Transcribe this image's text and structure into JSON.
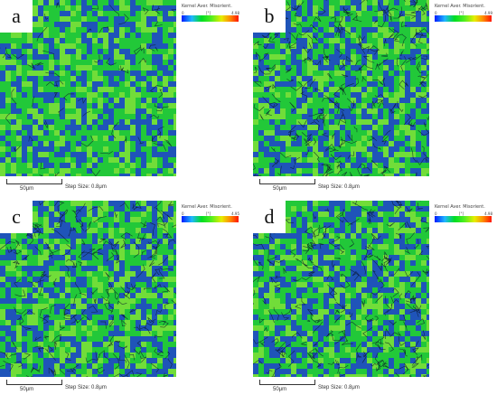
{
  "panels": [
    {
      "label": "a",
      "legend_title": "Kernel Aver. Misorient.",
      "legend_min": "0",
      "legend_unit": "[°]",
      "legend_max": "4.98",
      "scale_label": "50μm",
      "step_size": "Step Size: 0.8μm",
      "density": 0.25
    },
    {
      "label": "b",
      "legend_title": "Kernel Aver. Misorient.",
      "legend_min": "0",
      "legend_unit": "[°]",
      "legend_max": "4.99",
      "scale_label": "50μm",
      "step_size": "Step Size: 0.8μm",
      "density": 0.9
    },
    {
      "label": "c",
      "legend_title": "Kernel Aver. Misorient.",
      "legend_min": "0",
      "legend_unit": "[°]",
      "legend_max": "4.95",
      "scale_label": "50μm",
      "step_size": "Step Size: 0.8μm",
      "density": 0.8
    },
    {
      "label": "d",
      "legend_title": "Kernel Aver. Misorient.",
      "legend_min": "0",
      "legend_unit": "[°]",
      "legend_max": "4.98",
      "scale_label": "50μm",
      "step_size": "Step Size: 0.8μm",
      "density": 0.85
    }
  ],
  "colors": {
    "blue": "#1f3fd0",
    "green": "#22c83a",
    "lime": "#7fe03a",
    "boundary": "#0a1a2a"
  }
}
